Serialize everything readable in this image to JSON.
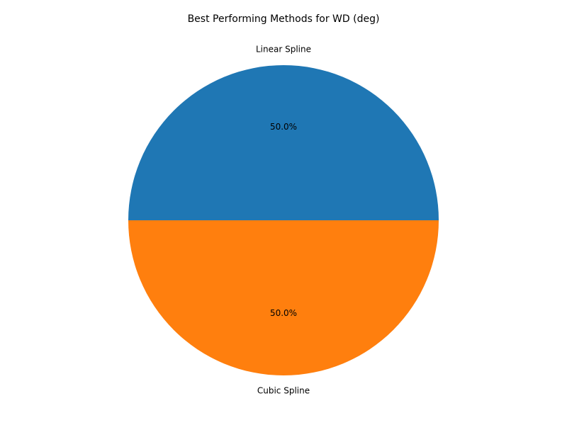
{
  "chart_data": {
    "type": "pie",
    "title": "Best Performing Methods for WD (deg)",
    "slices": [
      {
        "label": "Linear Spline",
        "value": 50.0,
        "pct_label": "50.0%",
        "color": "#1f77b4"
      },
      {
        "label": "Cubic Spline",
        "value": 50.0,
        "pct_label": "50.0%",
        "color": "#ff7f0e"
      }
    ],
    "start_angle_deg": 0,
    "direction": "counterclockwise",
    "legend": "none"
  }
}
